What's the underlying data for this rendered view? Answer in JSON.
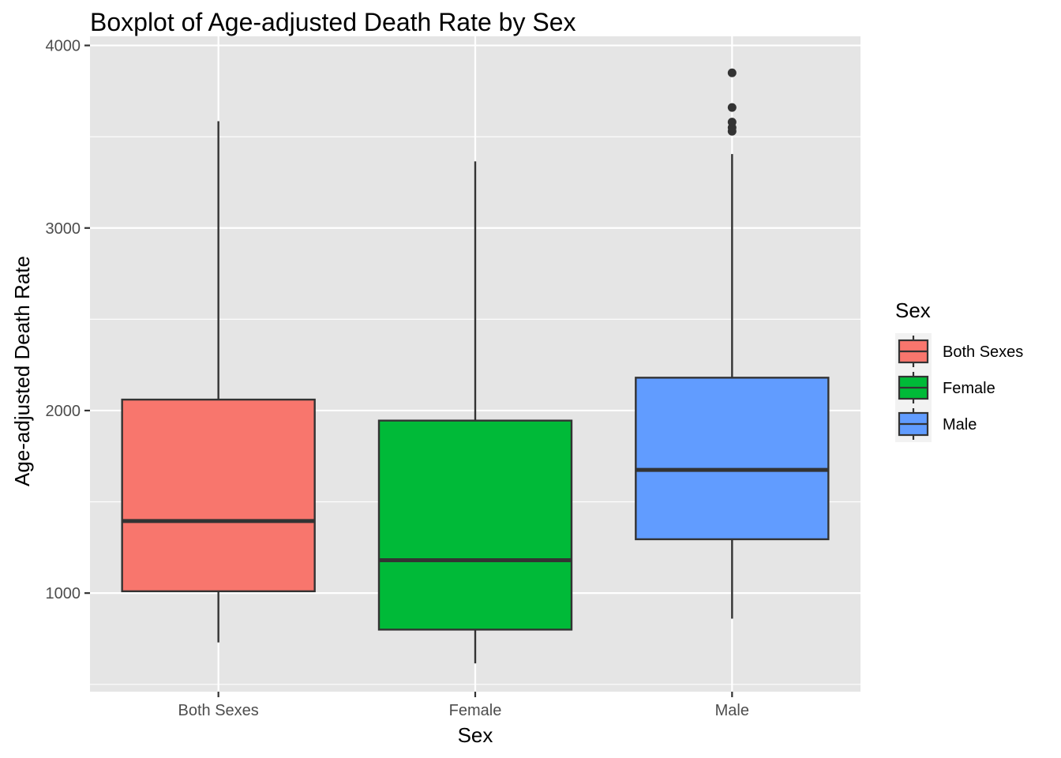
{
  "chart_data": {
    "type": "boxplot",
    "title": "Boxplot of Age-adjusted Death Rate by Sex",
    "xlabel": "Sex",
    "ylabel": "Age-adjusted Death Rate",
    "ylim": [
      460,
      4050
    ],
    "y_ticks": [
      1000,
      2000,
      3000,
      4000
    ],
    "y_tick_labels": [
      "1000",
      "2000",
      "3000",
      "4000"
    ],
    "grid": true,
    "categories": [
      "Both Sexes",
      "Female",
      "Male"
    ],
    "boxes": [
      {
        "category": "Both Sexes",
        "fill": "#F8766D",
        "whisker_low": 730,
        "q1": 1010,
        "median": 1395,
        "q3": 2060,
        "whisker_high": 3585,
        "outliers": []
      },
      {
        "category": "Female",
        "fill": "#00BA38",
        "whisker_low": 615,
        "q1": 800,
        "median": 1180,
        "q3": 1945,
        "whisker_high": 3365,
        "outliers": []
      },
      {
        "category": "Male",
        "fill": "#619CFF",
        "whisker_low": 860,
        "q1": 1295,
        "median": 1675,
        "q3": 2180,
        "whisker_high": 3405,
        "outliers": [
          3530,
          3550,
          3580,
          3660,
          3850
        ]
      }
    ],
    "legend": {
      "title": "Sex",
      "position": "right",
      "entries": [
        "Both Sexes",
        "Female",
        "Male"
      ]
    }
  },
  "colors": {
    "panel_background": "#E5E5E5",
    "grid_line": "#FFFFFF",
    "box_outline": "#333333",
    "tick_text": "#4D4D4D"
  }
}
